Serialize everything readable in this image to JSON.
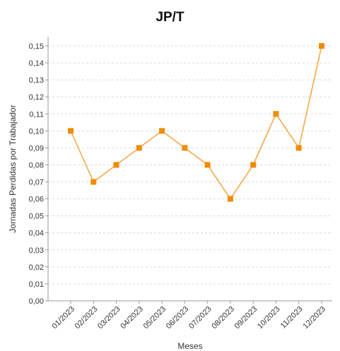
{
  "chart_data": {
    "type": "line",
    "title": "JP/T",
    "xlabel": "Meses",
    "ylabel": "Jornadas Perdidas por Trabajador",
    "categories": [
      "01/2023",
      "02/2023",
      "03/2023",
      "04/2023",
      "05/2023",
      "06/2023",
      "07/2023",
      "08/2023",
      "09/2023",
      "10/2023",
      "11/2023",
      "12/2023"
    ],
    "series": [
      {
        "values": [
          0.1,
          0.07,
          0.08,
          0.09,
          0.1,
          0.09,
          0.08,
          0.06,
          0.08,
          0.11,
          0.09,
          0.15
        ]
      }
    ],
    "ylim": [
      0,
      0.15
    ],
    "yticks": [
      "0,00",
      "0,01",
      "0,02",
      "0,03",
      "0,04",
      "0,05",
      "0,06",
      "0,07",
      "0,08",
      "0,09",
      "0,10",
      "0,11",
      "0,12",
      "0,13",
      "0,14",
      "0,15"
    ],
    "grid": true,
    "legend": "none",
    "colors": {
      "series": "#f7a84a",
      "marker": "#f08c00",
      "grid": "#d9d9d9",
      "axis": "#999999"
    }
  }
}
